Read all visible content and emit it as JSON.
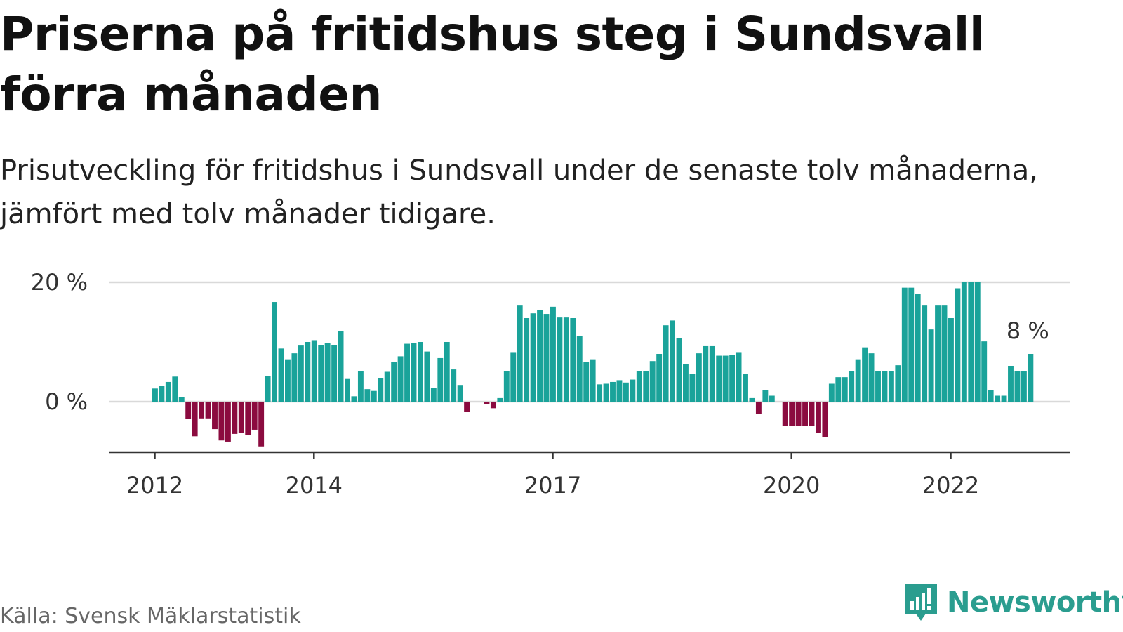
{
  "title": "Priserna på fritidshus steg i Sundsvall förra månaden",
  "subtitle": "Prisutveckling för fritidshus i Sundsvall under de senaste tolv månaderna, jämfört med tolv månader tidigare.",
  "source": "Källa: Svensk Mäklarstatistik",
  "brand": "Newsworthy",
  "colors": {
    "positive": "#1aa39a",
    "negative": "#8b0b3f",
    "grid": "#d9d9d9",
    "axis": "#333333",
    "brand": "#2a9d8f"
  },
  "chart_data": {
    "type": "bar",
    "x_start": "2012-01",
    "y_tick_values": [
      0,
      20
    ],
    "y_tick_labels": [
      "0 %",
      "20 %"
    ],
    "ylim": [
      -8.5,
      20.5
    ],
    "x_ticks": [
      {
        "label": "2012",
        "index": 0
      },
      {
        "label": "2014",
        "index": 24
      },
      {
        "label": "2017",
        "index": 60
      },
      {
        "label": "2020",
        "index": 96
      },
      {
        "label": "2022",
        "index": 120
      }
    ],
    "last_label": "8 %",
    "values": [
      2.2,
      2.6,
      3.3,
      4.2,
      0.8,
      -2.9,
      -5.8,
      -2.8,
      -2.8,
      -4.6,
      -6.5,
      -6.7,
      -5.4,
      -5.2,
      -5.6,
      -4.7,
      -7.5,
      4.3,
      16.7,
      8.9,
      7.1,
      8.1,
      9.4,
      10.0,
      10.3,
      9.5,
      9.8,
      9.5,
      11.8,
      3.8,
      0.9,
      5.1,
      2.1,
      1.8,
      3.9,
      5.0,
      6.6,
      7.6,
      9.7,
      9.8,
      10.0,
      8.4,
      2.3,
      7.3,
      10.0,
      5.4,
      2.8,
      -1.7,
      0,
      0,
      -0.4,
      -1.1,
      0.6,
      5.1,
      8.3,
      16.1,
      14.0,
      14.8,
      15.3,
      14.7,
      15.9,
      14.1,
      14.1,
      14.0,
      11.0,
      6.6,
      7.1,
      2.9,
      3.0,
      3.3,
      3.6,
      3.2,
      3.7,
      5.1,
      5.1,
      6.8,
      8.0,
      12.8,
      13.6,
      10.6,
      6.3,
      4.7,
      8.1,
      9.3,
      9.3,
      7.7,
      7.7,
      7.8,
      8.3,
      4.6,
      0.6,
      -2.1,
      2.0,
      1.0,
      0,
      -4.1,
      -4.1,
      -4.1,
      -4.1,
      -4.1,
      -5.2,
      -6.0,
      3.0,
      4.1,
      4.1,
      5.1,
      7.1,
      9.1,
      8.1,
      5.1,
      5.1,
      5.1,
      6.1,
      19.1,
      19.1,
      18.1,
      16.1,
      12.1,
      16.1,
      16.1,
      14.0,
      19.0,
      20.0,
      20.0,
      20.0,
      10.1,
      2.0,
      1.0,
      1.0,
      6.0,
      5.1,
      5.1,
      8.0
    ]
  }
}
